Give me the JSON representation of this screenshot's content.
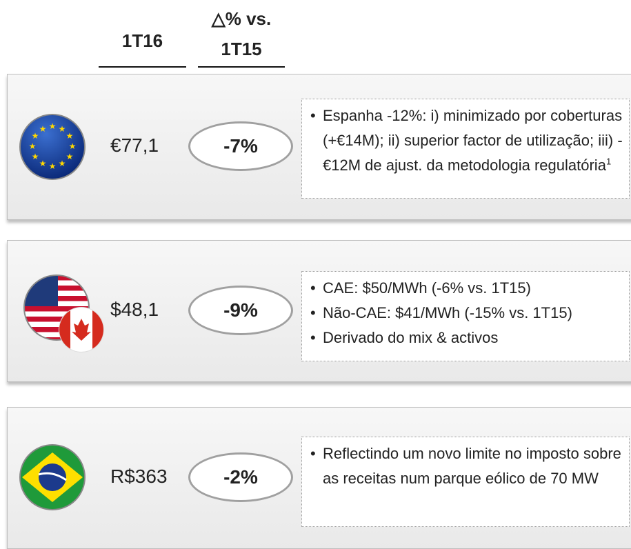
{
  "header": {
    "col1": "1T16",
    "col2_line1": "△% vs.",
    "col2_line2": "1T15"
  },
  "rows": [
    {
      "value": "€77,1",
      "change": "-7%",
      "bullets": [
        "Espanha -12%: i) minimizado por coberturas (+€14M); ii) superior factor de utilização; iii) -€12M de ajust. da metodologia regulatória"
      ],
      "footnote": "1"
    },
    {
      "value": "$48,1",
      "change": "-9%",
      "bullets": [
        "CAE: $50/MWh (-6% vs. 1T15)",
        "Não-CAE: $41/MWh (-15% vs. 1T15)",
        "Derivado do mix & activos"
      ]
    },
    {
      "value": "R$363",
      "change": "-2%",
      "bullets": [
        "Reflectindo um novo limite no imposto sobre as receitas num parque eólico de 70 MW"
      ]
    }
  ]
}
